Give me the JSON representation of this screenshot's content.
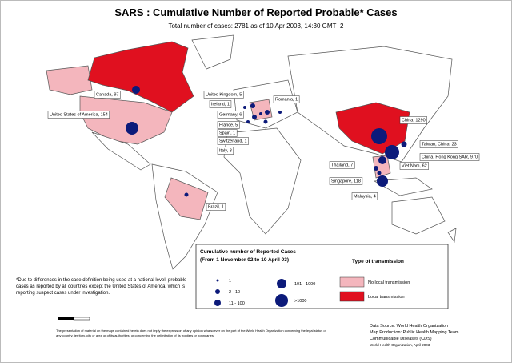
{
  "header": {
    "title": "SARS : Cumulative Number of Reported Probable* Cases",
    "subtitle": "Total number of cases: 2781 as of 10 Apr 2003, 14:30 GMT+2"
  },
  "country_labels": [
    "Canada, 97",
    "United States of America, 154",
    "Brazil, 1",
    "United Kingdom, 5",
    "Ireland, 1",
    "France, 5",
    "Spain, 1",
    "Switzerland, 1",
    "Germany, 6",
    "Italy, 3",
    "Romania, 1",
    "China, 1290",
    "Taiwan, China, 23",
    "China, Hong Kong SAR, 970",
    "Viet Nam, 62",
    "Thailand, 7",
    "Singapore, 118",
    "Malaysia, 4"
  ],
  "legend": {
    "title": "Cumulative number of Reported Cases",
    "period": "(From 1 November 02 to 10 April 03)",
    "sizes": [
      "1",
      "2 - 10",
      "11 - 100",
      "101 - 1000",
      ">1000"
    ],
    "transmission_title": "Type of transmission",
    "transmission": [
      "No local transmission",
      "Local transmission"
    ]
  },
  "footnote": "*Due to differences in the case definition being used at a national level, probable cases as reported by all countries except the United States of America, which is reporting suspect cases under investigation.",
  "disclaimer": "The presentation of material on the maps contained herein does not imply the expression of any opinion whatsoever on the part of the World Health Organization concerning the legal status of any country, territory, city or area or of its authorities, or concerning the delimitation of its frontiers or boundaries.",
  "source": [
    "Data Source: World Health Organization",
    "Map Production: Public Health Mapping Team",
    "Communicable Diseases (CDS)",
    "World Health Organization, April 2003"
  ]
}
